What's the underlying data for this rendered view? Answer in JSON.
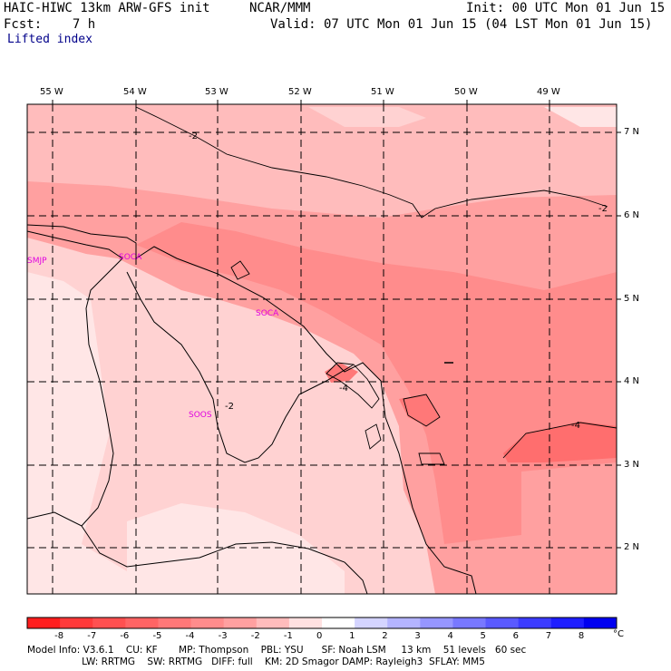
{
  "header": {
    "model": "HAIC-HIWC 13km ARW-GFS init",
    "org": "NCAR/MMM",
    "init": "Init: 00 UTC Mon 01 Jun 15",
    "fcst": "Fcst:    7 h",
    "valid": "Valid: 07 UTC Mon 01 Jun 15 (04 LST Mon 01 Jun 15)",
    "field": "Lifted index"
  },
  "map": {
    "lon_labels": [
      "55 W",
      "54 W",
      "53 W",
      "52 W",
      "51 W",
      "50 W",
      "49 W"
    ],
    "lat_labels": [
      "7 N",
      "6 N",
      "5 N",
      "4 N",
      "3 N",
      "2 N"
    ],
    "stations": [
      "SMJP",
      "SOCA",
      "SOCA",
      "SOOS"
    ],
    "contour_labels": [
      "-2",
      "-2",
      "-4",
      "-2",
      "-4"
    ]
  },
  "colorbar": {
    "ticks": [
      "-8",
      "-7",
      "-6",
      "-5",
      "-4",
      "-3",
      "-2",
      "-1",
      "0",
      "1",
      "2",
      "3",
      "4",
      "5",
      "6",
      "7",
      "8"
    ],
    "unit": "°C",
    "colors": [
      "#ff1e1e",
      "#ff3a3a",
      "#ff5050",
      "#ff6464",
      "#ff7878",
      "#ff8c8c",
      "#ffa0a0",
      "#ffbcbc",
      "#ffe1e1",
      "#ffffff",
      "#d4d4ff",
      "#b4b4ff",
      "#9696ff",
      "#7878ff",
      "#5a5aff",
      "#3c3cff",
      "#1e1eff",
      "#0000f0"
    ]
  },
  "footer": {
    "line1": "Model Info: V3.6.1    CU: KF       MP: Thompson    PBL: YSU      SF: Noah LSM     13 km    51 levels   60 sec",
    "line2": "                  LW: RRTMG    SW: RRTMG   DIFF: full    KM: 2D Smagor DAMP: Rayleigh3  SFLAY: MM5"
  }
}
